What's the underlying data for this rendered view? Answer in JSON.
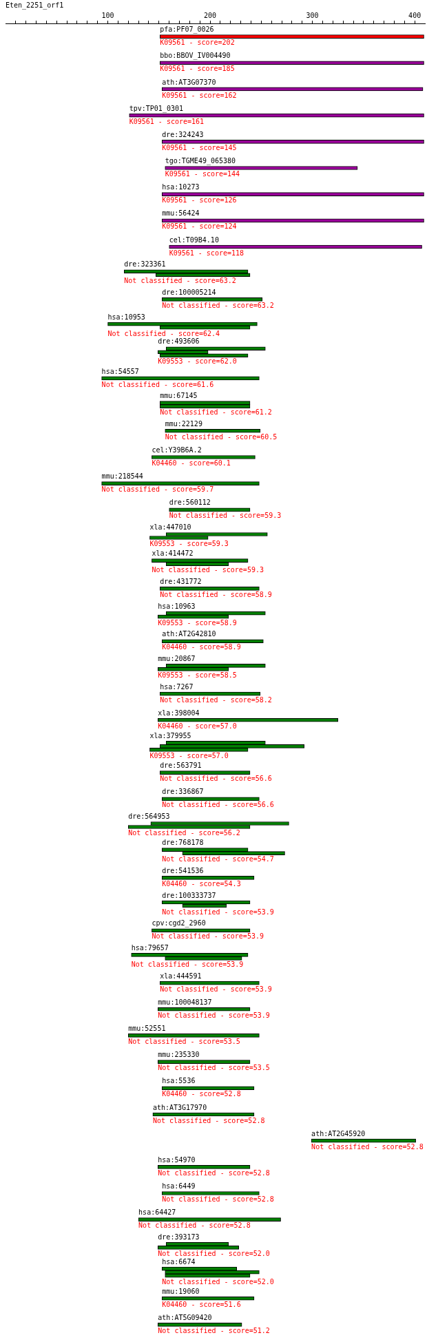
{
  "chart_data": {
    "type": "bar",
    "orientation": "horizontal",
    "title": "Eten_2251_orf1",
    "legend": false,
    "grid": false,
    "categories": [
      "pfa:PF07_0026",
      "bbo:BBOV_IV004490",
      "ath:AT3G07370",
      "tpv:TP01_0301",
      "dre:324243",
      "tgo:TGME49_065380",
      "hsa:10273",
      "mmu:56424",
      "cel:T09B4.10",
      "dre:323361",
      "dre:100005214",
      "hsa:10953",
      "dre:493606",
      "hsa:54557",
      "mmu:67145",
      "mmu:22129",
      "cel:Y39B6A.2",
      "mmu:218544",
      "dre:560112",
      "xla:447010",
      "xla:414472",
      "dre:431772",
      "hsa:10963",
      "ath:AT2G42810",
      "mmu:20867",
      "hsa:7267",
      "xla:398004",
      "xla:379955",
      "dre:563791",
      "dre:336867",
      "dre:564953",
      "dre:768178",
      "dre:541536",
      "dre:100333737",
      "cpv:cgd2_2960",
      "hsa:79657",
      "xla:444591",
      "mmu:100048137",
      "mmu:52551",
      "mmu:235330",
      "hsa:5536",
      "ath:AT3G17970",
      "ath:AT2G45920",
      "hsa:54970",
      "hsa:6449",
      "hsa:64427",
      "dre:393173",
      "hsa:6674",
      "mmu:19060",
      "ath:AT5G09420"
    ],
    "xlim": [
      0,
      410
    ],
    "annotations": [
      "K09561 - score=202",
      "K09561 - score=185",
      "K09561 - score=162",
      "K09561 - score=161",
      "K09561 - score=145",
      "K09561 - score=144",
      "K09561 - score=126",
      "K09561 - score=124",
      "K09561 - score=118",
      "Not classified - score=63.2",
      "Not classified - score=63.2",
      "Not classified - score=62.4",
      "K09553 - score=62.0",
      "Not classified - score=61.6",
      "Not classified - score=61.2",
      "Not classified - score=60.5",
      "K04460 - score=60.1",
      "Not classified - score=59.7",
      "Not classified - score=59.3",
      "K09553 - score=59.3",
      "Not classified - score=59.3",
      "Not classified - score=58.9",
      "K09553 - score=58.9",
      "K04460 - score=58.9",
      "K09553 - score=58.5",
      "Not classified - score=58.2",
      "K04460 - score=57.0",
      "K09553 - score=57.0",
      "Not classified - score=56.6",
      "Not classified - score=56.6",
      "Not classified - score=56.2",
      "Not classified - score=54.7",
      "K04460 - score=54.3",
      "Not classified - score=53.9",
      "Not classified - score=53.9",
      "Not classified - score=53.9",
      "Not classified - score=53.9",
      "Not classified - score=53.9",
      "Not classified - score=53.5",
      "Not classified - score=53.5",
      "K04460 - score=52.8",
      "Not classified - score=52.8",
      "Not classified - score=52.8",
      "Not classified - score=52.8",
      "Not classified - score=52.8",
      "Not classified - score=52.8",
      "Not classified - score=52.0",
      "Not classified - score=52.0",
      "K04460 - score=51.6",
      "Not classified - score=51.2"
    ],
    "xticks": [
      {
        "value": 10,
        "label": null
      },
      {
        "value": 20,
        "label": null
      },
      {
        "value": 30,
        "label": null
      },
      {
        "value": 40,
        "label": null
      },
      {
        "value": 50,
        "label": null
      },
      {
        "value": 60,
        "label": null
      },
      {
        "value": 70,
        "label": null
      },
      {
        "value": 80,
        "label": null
      },
      {
        "value": 90,
        "label": null
      },
      100,
      {
        "value": 110,
        "label": null
      },
      {
        "value": 120,
        "label": null
      },
      {
        "value": 130,
        "label": null
      },
      {
        "value": 140,
        "label": null
      },
      {
        "value": 150,
        "label": null
      },
      {
        "value": 160,
        "label": null
      },
      {
        "value": 170,
        "label": null
      },
      {
        "value": 180,
        "label": null
      },
      {
        "value": 190,
        "label": null
      },
      200,
      {
        "value": 210,
        "label": null
      },
      {
        "value": 220,
        "label": null
      },
      {
        "value": 230,
        "label": null
      },
      {
        "value": 240,
        "label": null
      },
      {
        "value": 250,
        "label": null
      },
      {
        "value": 260,
        "label": null
      },
      {
        "value": 270,
        "label": null
      },
      {
        "value": 280,
        "label": null
      },
      {
        "value": 290,
        "label": null
      },
      300,
      {
        "value": 310,
        "label": null
      },
      {
        "value": 320,
        "label": null
      },
      {
        "value": 330,
        "label": null
      },
      {
        "value": 340,
        "label": null
      },
      {
        "value": 350,
        "label": null
      },
      {
        "value": 360,
        "label": null
      },
      {
        "value": 370,
        "label": null
      },
      {
        "value": 380,
        "label": null
      },
      {
        "value": 390,
        "label": null
      },
      400
    ],
    "series": [
      {
        "colors": [
          "#ff0000",
          "#990099",
          "#990099",
          "#990099",
          "#990099",
          "#990099",
          "#990099",
          "#990099",
          "#990099",
          "#008000",
          "#008000",
          "#008000",
          "#008000",
          "#008000",
          "#008000",
          "#008000",
          "#008000",
          "#008000",
          "#008000",
          "#008000",
          "#008000",
          "#008000",
          "#008000",
          "#008000",
          "#008000",
          "#008000",
          "#008000",
          "#008000",
          "#008000",
          "#008000",
          "#008000",
          "#008000",
          "#008000",
          "#008000",
          "#008000",
          "#008000",
          "#008000",
          "#008000",
          "#008000",
          "#008000",
          "#008000",
          "#008000",
          "#008000",
          "#008000",
          "#008000",
          "#008000",
          "#008000",
          "#008000",
          "#008000",
          "#008000"
        ],
        "base": [
          151,
          151,
          153,
          121,
          153,
          156,
          153,
          153,
          160,
          116,
          153,
          100,
          157,
          94,
          151,
          156,
          143,
          94,
          160,
          157,
          143,
          151,
          157,
          153,
          157,
          151,
          149,
          157,
          151,
          153,
          142,
          153,
          153,
          153,
          143,
          123,
          151,
          149,
          120,
          149,
          153,
          144,
          299,
          149,
          153,
          130,
          157,
          153,
          153,
          149
        ],
        "values": [
          258,
          258,
          255,
          288,
          256,
          188,
          256,
          256,
          247,
          121,
          98,
          146,
          97,
          154,
          88,
          93,
          101,
          154,
          79,
          99,
          94,
          97,
          97,
          99,
          97,
          98,
          176,
          97,
          88,
          95,
          135,
          84,
          90,
          86,
          96,
          114,
          97,
          90,
          128,
          90,
          90,
          99,
          102,
          90,
          95,
          139,
          61,
          73,
          90,
          82
        ]
      },
      {
        "color": "#008000",
        "base": [
          null,
          null,
          null,
          null,
          null,
          null,
          null,
          null,
          null,
          147,
          null,
          151,
          149,
          null,
          151,
          null,
          null,
          null,
          null,
          141,
          157,
          null,
          149,
          null,
          149,
          null,
          null,
          151,
          null,
          null,
          120,
          173,
          null,
          173,
          null,
          156,
          null,
          null,
          null,
          null,
          null,
          null,
          null,
          null,
          null,
          null,
          149,
          156,
          null,
          null
        ],
        "values": [
          null,
          null,
          null,
          null,
          null,
          null,
          null,
          null,
          null,
          92,
          null,
          88,
          49,
          null,
          88,
          null,
          null,
          null,
          null,
          57,
          61,
          null,
          69,
          null,
          69,
          null,
          null,
          141,
          null,
          null,
          119,
          100,
          null,
          43,
          null,
          75,
          null,
          null,
          null,
          null,
          null,
          null,
          null,
          null,
          null,
          null,
          79,
          92,
          null,
          null
        ]
      },
      {
        "color": "#008000",
        "base": [
          null,
          null,
          null,
          null,
          null,
          null,
          null,
          null,
          null,
          null,
          null,
          null,
          151,
          null,
          null,
          null,
          null,
          null,
          null,
          null,
          null,
          null,
          null,
          null,
          null,
          null,
          null,
          141,
          null,
          null,
          null,
          null,
          null,
          null,
          null,
          null,
          null,
          null,
          null,
          null,
          null,
          null,
          null,
          null,
          null,
          null,
          null,
          156,
          null,
          null
        ],
        "values": [
          null,
          null,
          null,
          null,
          null,
          null,
          null,
          null,
          null,
          null,
          null,
          null,
          86,
          null,
          null,
          null,
          null,
          null,
          null,
          null,
          null,
          null,
          null,
          null,
          null,
          null,
          null,
          96,
          null,
          null,
          null,
          null,
          null,
          null,
          null,
          null,
          null,
          null,
          null,
          null,
          null,
          null,
          null,
          null,
          null,
          null,
          null,
          83,
          null,
          null
        ]
      }
    ]
  }
}
